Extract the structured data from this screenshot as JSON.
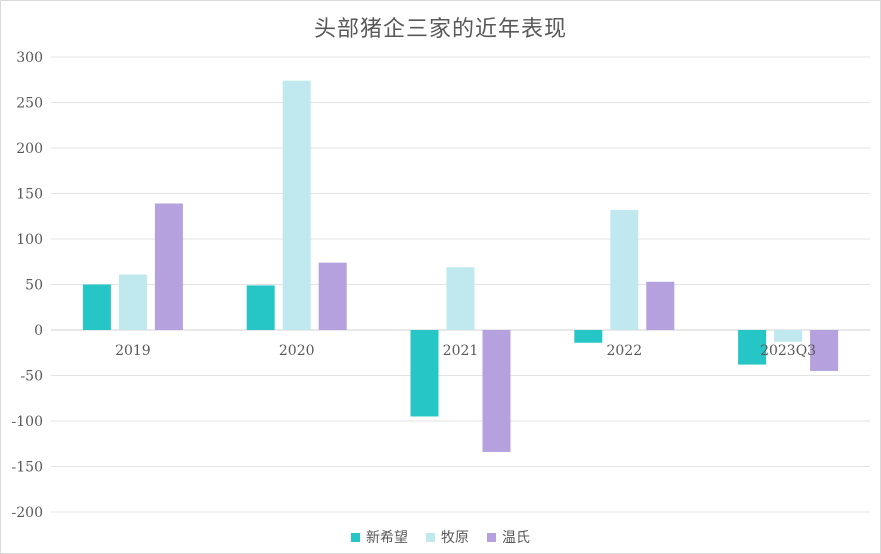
{
  "chart_data": {
    "type": "bar",
    "title": "头部猪企三家的近年表现",
    "categories": [
      "2019",
      "2020",
      "2021",
      "2022",
      "2023Q3"
    ],
    "series": [
      {
        "name": "新希望",
        "color": "#26c6c6",
        "values": [
          50,
          49,
          -95,
          -14,
          -38
        ]
      },
      {
        "name": "牧原",
        "color": "#bfe9ee",
        "values": [
          61,
          274,
          69,
          132,
          -13
        ]
      },
      {
        "name": "温氏",
        "color": "#b4a1dd",
        "values": [
          139,
          74,
          -134,
          53,
          -45
        ]
      }
    ],
    "ylim": [
      -200,
      300
    ],
    "yticks": [
      300,
      250,
      200,
      150,
      100,
      50,
      0,
      -50,
      -100,
      -150,
      -200
    ],
    "xlabel": "",
    "ylabel": "",
    "grid": true,
    "legend_position": "bottom"
  }
}
